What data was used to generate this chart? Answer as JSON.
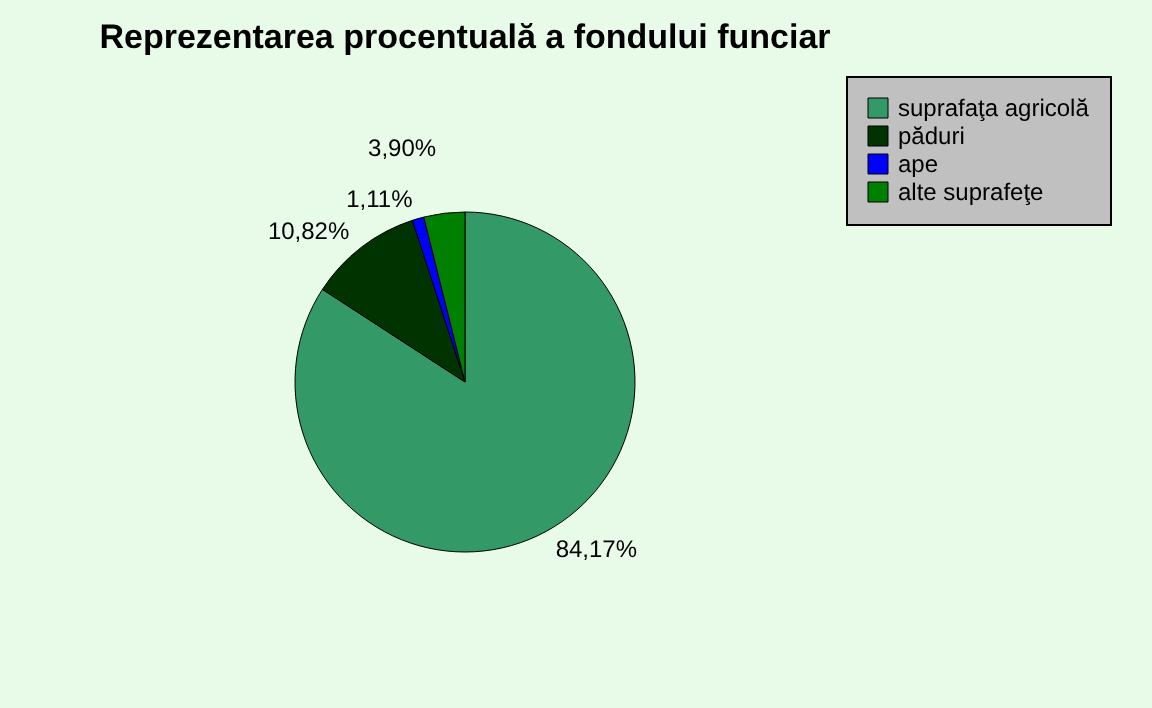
{
  "chart_data": {
    "type": "pie",
    "title": "Reprezentarea procentuală a fondului funciar",
    "categories": [
      "suprafaţa agricolă",
      "păduri",
      "ape",
      "alte suprafeţe"
    ],
    "values": [
      84.17,
      10.82,
      1.11,
      3.9
    ],
    "colors": [
      "#339966",
      "#003300",
      "#0000ff",
      "#008000"
    ],
    "value_labels": [
      "84,17%",
      "10,82%",
      "1,11%",
      "3,90%"
    ],
    "legend": "right"
  }
}
